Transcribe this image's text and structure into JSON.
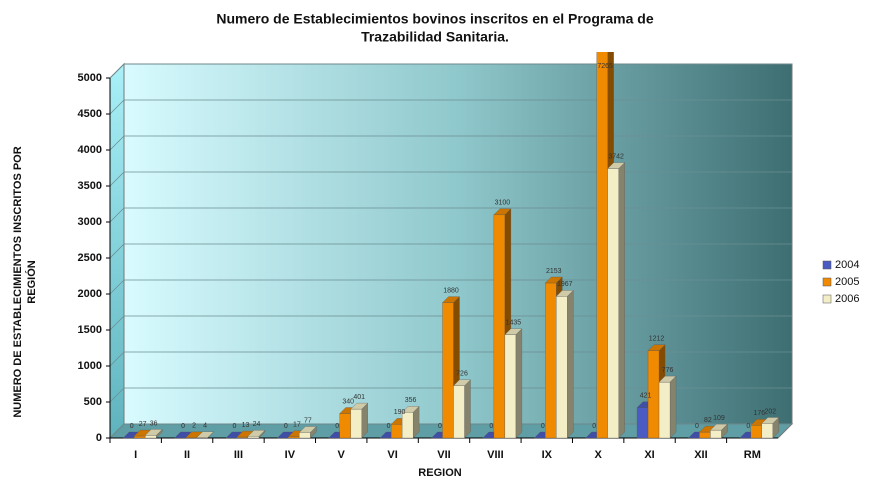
{
  "chart_data": {
    "type": "bar3d",
    "title": [
      "Numero de Establecimientos bovinos inscritos en el Programa de",
      "Trazabilidad Sanitaria."
    ],
    "y_label": [
      "NUMERO DE ESTABLECIMIENTOS INSCRITOS POR",
      "REGIÓN"
    ],
    "x_label": "REGION",
    "categories": [
      "I",
      "II",
      "III",
      "IV",
      "V",
      "VI",
      "VII",
      "VIII",
      "IX",
      "X",
      "XI",
      "XII",
      "RM"
    ],
    "series": [
      {
        "name": "2004",
        "color": "#4a5cc4",
        "values": [
          0,
          0,
          0,
          0,
          0,
          0,
          0,
          0,
          0,
          0,
          421,
          0,
          0
        ]
      },
      {
        "name": "2005",
        "color": "#f08a00",
        "values": [
          27,
          2,
          13,
          17,
          340,
          190,
          1880,
          3100,
          2153,
          7265,
          1212,
          82,
          176
        ]
      },
      {
        "name": "2006",
        "color": "#f3eec6",
        "values": [
          36,
          4,
          24,
          77,
          401,
          356,
          726,
          1435,
          1967,
          3742,
          776,
          109,
          202
        ]
      }
    ],
    "ylim": [
      0,
      5000
    ],
    "yticks": [
      0,
      500,
      1000,
      1500,
      2000,
      2500,
      3000,
      3500,
      4000,
      4500,
      5000
    ],
    "legend": "right"
  }
}
